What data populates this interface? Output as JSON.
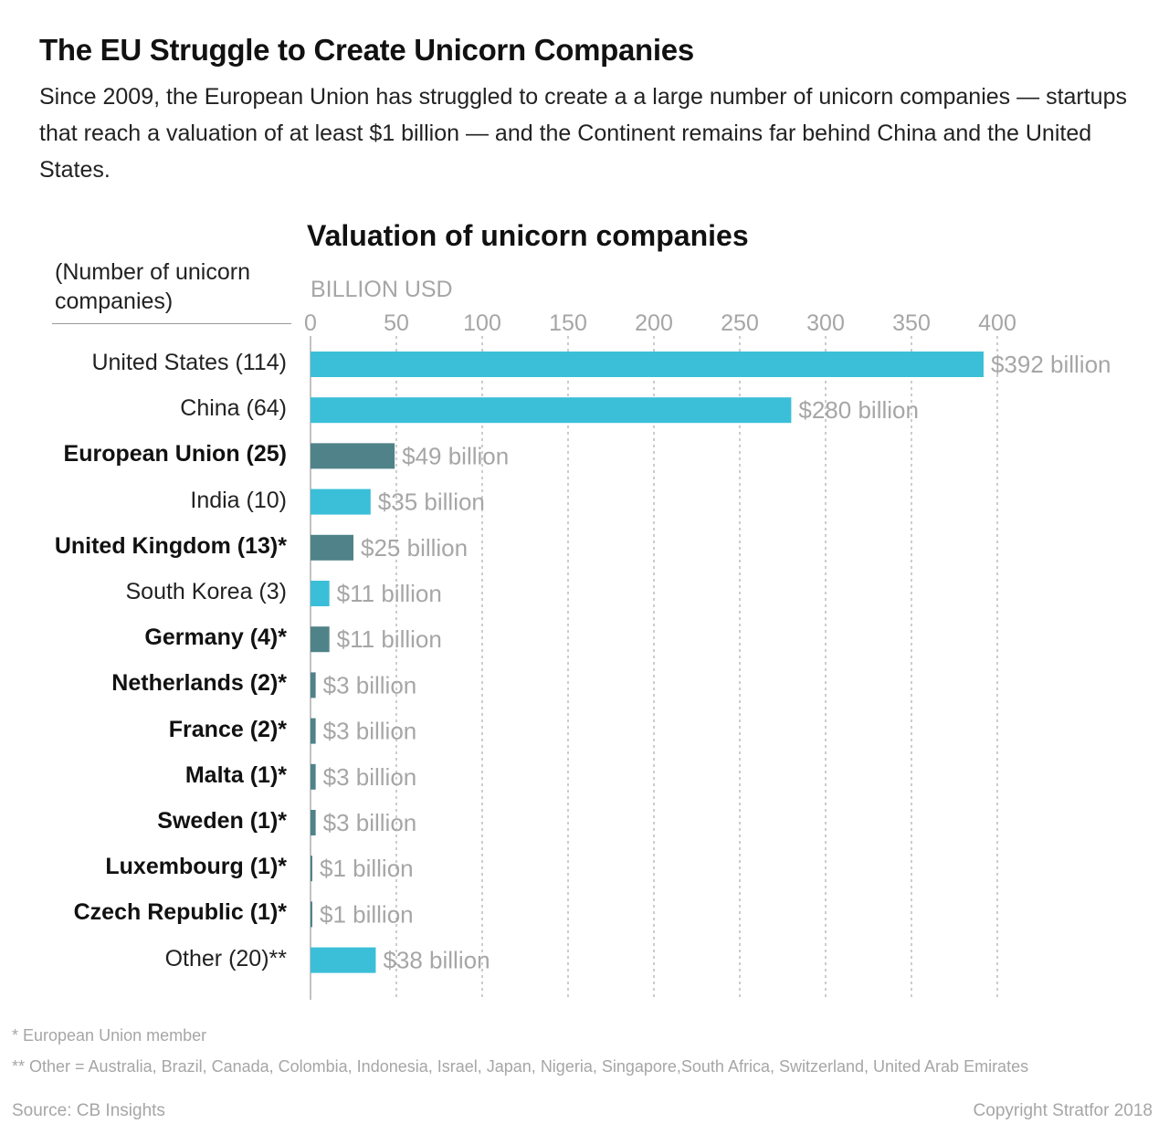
{
  "header": {
    "title": "The EU Struggle to Create Unicorn Companies",
    "subtitle": "Since 2009, the European Union has struggled to create a a large number of unicorn companies — startups that reach a valuation of at least $1 billion — and the Continent remains far behind China and the United States."
  },
  "chart_data": {
    "type": "bar",
    "orientation": "horizontal",
    "title": "Valuation of unicorn companies",
    "row_label_note": "(Number of unicorn companies)",
    "xlabel": "BILLION USD",
    "xlim": [
      0,
      400
    ],
    "xticks": [
      0,
      50,
      100,
      150,
      200,
      250,
      300,
      350,
      400
    ],
    "grid": "vertical dashed",
    "colors": {
      "non_eu": "#3bbfd8",
      "eu": "#4f8389"
    },
    "categories": [
      "United States (114)",
      "China (64)",
      "European Union (25)",
      "India (10)",
      "United Kingdom (13)*",
      "South Korea (3)",
      "Germany (4)*",
      "Netherlands (2)*",
      "France (2)*",
      "Malta (1)*",
      "Sweden (1)*",
      "Luxembourg (1)*",
      "Czech Republic (1)*",
      "Other (20)**"
    ],
    "values": [
      392,
      280,
      49,
      35,
      25,
      11,
      11,
      3,
      3,
      3,
      3,
      1,
      1,
      38
    ],
    "value_labels": [
      "$392 billion",
      "$280 billion",
      "$49 billion",
      "$35 billion",
      "$25 billion",
      "$11 billion",
      "$11 billion",
      "$3 billion",
      "$3 billion",
      "$3 billion",
      "$3 billion",
      "$1 billion",
      "$1 billion",
      "$38 billion"
    ],
    "eu": [
      false,
      false,
      true,
      false,
      true,
      false,
      true,
      true,
      true,
      true,
      true,
      true,
      true,
      false
    ]
  },
  "footnotes": {
    "eu_member": "* European Union member",
    "other": "** Other = Australia, Brazil, Canada, Colombia, Indonesia, Israel, Japan, Nigeria, Singapore,South Africa, Switzerland, United Arab Emirates"
  },
  "source": "Source: CB Insights",
  "copyright": "Copyright Stratfor 2018"
}
